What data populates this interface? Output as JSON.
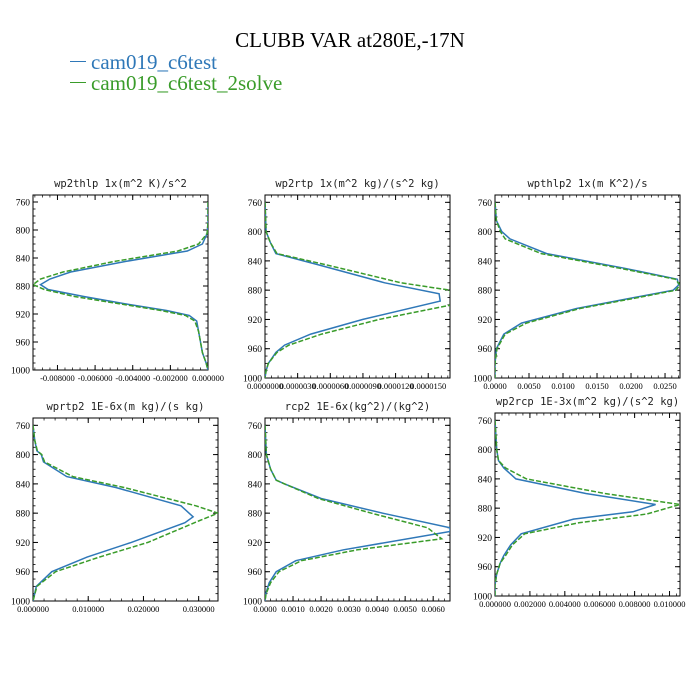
{
  "title": "CLUBB VAR at280E,-17N",
  "legend": [
    {
      "label": "cam019_c6test",
      "color": "#2f78b8"
    },
    {
      "label": "cam019_c6test_2solve",
      "color": "#3a9c2a"
    }
  ],
  "chart_data": [
    {
      "type": "line",
      "title": "wp2thlp  1x(m^2 K)/s^2",
      "ylim": [
        1000,
        750
      ],
      "yticks": [
        "760",
        "800",
        "840",
        "880",
        "920",
        "960",
        "1000"
      ],
      "xlim": [
        -0.0093,
        0.0
      ],
      "xticks": [
        {
          "v": -0.008,
          "label": "-0.008000"
        },
        {
          "v": -0.006,
          "label": "-0.006000"
        },
        {
          "v": -0.004,
          "label": "-0.004000"
        },
        {
          "v": -0.002,
          "label": "-0.002000"
        },
        {
          "v": 0.0,
          "label": "0.000000"
        }
      ],
      "series": [
        {
          "name": "cam019_c6test",
          "y": [
            760,
            790,
            805,
            820,
            830,
            845,
            860,
            870,
            878,
            885,
            895,
            905,
            915,
            922,
            930,
            945,
            960,
            975,
            990,
            1000
          ],
          "x": [
            0,
            0,
            -5e-05,
            -0.0003,
            -0.0011,
            -0.0044,
            -0.0073,
            -0.0084,
            -0.0089,
            -0.0085,
            -0.0066,
            -0.0045,
            -0.0022,
            -0.001,
            -0.0006,
            -0.0005,
            -0.0004,
            -0.0003,
            -0.0001,
            0
          ]
        },
        {
          "name": "cam019_c6test_2solve",
          "y": [
            760,
            790,
            805,
            820,
            830,
            845,
            860,
            870,
            878,
            885,
            895,
            905,
            915,
            922,
            930,
            945,
            960,
            975,
            990,
            1000
          ],
          "x": [
            0,
            0,
            -5e-05,
            -0.0005,
            -0.0016,
            -0.005,
            -0.0077,
            -0.0089,
            -0.0093,
            -0.0087,
            -0.0071,
            -0.0048,
            -0.0025,
            -0.0012,
            -0.0007,
            -0.0005,
            -0.0004,
            -0.0003,
            -0.0001,
            0
          ]
        }
      ]
    },
    {
      "type": "line",
      "title": "wp2rtp  1x(m^2 kg)/(s^2 kg)",
      "ylim": [
        1000,
        750
      ],
      "yticks": [
        "760",
        "800",
        "840",
        "880",
        "920",
        "960",
        "1000"
      ],
      "xlim": [
        0.0,
        1.7e-05
      ],
      "xticks": [
        {
          "v": 0.0,
          "label": "0.0000000"
        },
        {
          "v": 3e-06,
          "label": "0.0000030"
        },
        {
          "v": 6e-06,
          "label": "0.0000060"
        },
        {
          "v": 9e-06,
          "label": "0.0000090"
        },
        {
          "v": 1.2e-05,
          "label": "0.0000120"
        },
        {
          "v": 1.5e-05,
          "label": "0.0000150"
        }
      ],
      "series": [
        {
          "name": "cam019_c6test",
          "y": [
            760,
            800,
            815,
            830,
            845,
            870,
            885,
            895,
            920,
            940,
            955,
            965,
            980,
            990,
            1000
          ],
          "x": [
            0,
            1e-07,
            5e-07,
            1e-06,
            4.8e-06,
            1.1e-05,
            1.6e-05,
            1.61e-05,
            9e-06,
            4.2e-06,
            1.8e-06,
            1e-06,
            3e-07,
            1e-07,
            0
          ]
        },
        {
          "name": "cam019_c6test_2solve",
          "y": [
            760,
            800,
            815,
            830,
            845,
            870,
            880,
            900,
            920,
            940,
            955,
            965,
            980,
            990,
            1000
          ],
          "x": [
            0,
            1e-07,
            5e-07,
            1.1e-06,
            5.5e-06,
            1.25e-05,
            1.7e-05,
            1.72e-05,
            1.05e-05,
            5.2e-06,
            2.2e-06,
            1.1e-06,
            3e-07,
            1e-07,
            0
          ]
        }
      ]
    },
    {
      "type": "line",
      "title": "wpthlp2  1x(m K^2)/s",
      "ylim": [
        1000,
        750
      ],
      "yticks": [
        "760",
        "800",
        "840",
        "880",
        "920",
        "960",
        "1000"
      ],
      "xlim": [
        0.0,
        0.0272
      ],
      "xticks": [
        {
          "v": 0.0,
          "label": "0.0000"
        },
        {
          "v": 0.005,
          "label": "0.0050"
        },
        {
          "v": 0.01,
          "label": "0.0100"
        },
        {
          "v": 0.015,
          "label": "0.0150"
        },
        {
          "v": 0.02,
          "label": "0.0200"
        },
        {
          "v": 0.025,
          "label": "0.0250"
        }
      ],
      "series": [
        {
          "name": "cam019_c6test",
          "y": [
            760,
            785,
            800,
            810,
            830,
            850,
            865,
            873,
            880,
            890,
            905,
            925,
            940,
            960,
            980,
            1000
          ],
          "x": [
            0,
            0.0002,
            0.001,
            0.0022,
            0.0076,
            0.019,
            0.0268,
            0.027,
            0.0262,
            0.0205,
            0.012,
            0.0039,
            0.0013,
            0.0002,
            0,
            0
          ]
        },
        {
          "name": "cam019_c6test_2solve",
          "y": [
            760,
            785,
            800,
            810,
            830,
            850,
            865,
            873,
            880,
            890,
            905,
            925,
            940,
            960,
            980,
            1000
          ],
          "x": [
            0,
            0.0002,
            0.0008,
            0.0015,
            0.0068,
            0.0183,
            0.0265,
            0.0272,
            0.0266,
            0.0211,
            0.0125,
            0.0046,
            0.0015,
            0.0003,
            0,
            0
          ]
        }
      ]
    },
    {
      "type": "line",
      "title": "wprtp2  1E-6x(m kg)/(s kg)",
      "ylim": [
        1000,
        750
      ],
      "yticks": [
        "760",
        "800",
        "840",
        "880",
        "920",
        "960",
        "1000"
      ],
      "xlim": [
        0.0,
        0.0335
      ],
      "xticks": [
        {
          "v": 0.0,
          "label": "0.000000"
        },
        {
          "v": 0.01,
          "label": "0.010000"
        },
        {
          "v": 0.02,
          "label": "0.020000"
        },
        {
          "v": 0.03,
          "label": "0.030000"
        }
      ],
      "series": [
        {
          "name": "cam019_c6test",
          "y": [
            760,
            780,
            795,
            800,
            810,
            830,
            845,
            870,
            885,
            893,
            920,
            940,
            960,
            980,
            1000
          ],
          "x": [
            0,
            0.0003,
            0.0007,
            0.0015,
            0.0019,
            0.0061,
            0.015,
            0.0268,
            0.029,
            0.0275,
            0.0178,
            0.0098,
            0.0034,
            0.0006,
            0
          ]
        },
        {
          "name": "cam019_c6test_2solve",
          "y": [
            760,
            780,
            795,
            800,
            810,
            830,
            845,
            870,
            880,
            890,
            920,
            940,
            960,
            980,
            1000
          ],
          "x": [
            0,
            0.0003,
            0.0008,
            0.0016,
            0.0021,
            0.0072,
            0.0165,
            0.0295,
            0.0335,
            0.0302,
            0.0208,
            0.012,
            0.0041,
            0.0007,
            0
          ]
        }
      ]
    },
    {
      "type": "line",
      "title": "rcp2  1E-6x(kg^2)/(kg^2)",
      "ylim": [
        1000,
        750
      ],
      "yticks": [
        "760",
        "800",
        "840",
        "880",
        "920",
        "960",
        "1000"
      ],
      "xlim": [
        0.0,
        0.0066
      ],
      "xticks": [
        {
          "v": 0.0,
          "label": "0.0000"
        },
        {
          "v": 0.001,
          "label": "0.0010"
        },
        {
          "v": 0.002,
          "label": "0.0020"
        },
        {
          "v": 0.003,
          "label": "0.0030"
        },
        {
          "v": 0.004,
          "label": "0.0040"
        },
        {
          "v": 0.005,
          "label": "0.0050"
        },
        {
          "v": 0.006,
          "label": "0.0060"
        }
      ],
      "series": [
        {
          "name": "cam019_c6test",
          "y": [
            760,
            800,
            820,
            835,
            840,
            860,
            880,
            900,
            905,
            930,
            945,
            960,
            975,
            990,
            1000
          ],
          "x": [
            0,
            5e-05,
            0.0002,
            0.0004,
            0.0007,
            0.002,
            0.0042,
            0.0066,
            0.0066,
            0.0028,
            0.0011,
            0.0004,
            0.00015,
            3e-05,
            0
          ]
        },
        {
          "name": "cam019_c6test_2solve",
          "y": [
            760,
            800,
            820,
            835,
            840,
            860,
            880,
            900,
            915,
            930,
            945,
            960,
            975,
            990,
            1000
          ],
          "x": [
            0,
            5e-05,
            0.0002,
            0.0004,
            0.0007,
            0.0019,
            0.0038,
            0.0058,
            0.0063,
            0.0033,
            0.0013,
            0.0005,
            0.0002,
            4e-05,
            0
          ]
        }
      ]
    },
    {
      "type": "line",
      "title": "wp2rcp  1E-3x(m^2 kg)/(s^2 kg)",
      "ylim": [
        1000,
        750
      ],
      "yticks": [
        "760",
        "800",
        "840",
        "880",
        "920",
        "960",
        "1000"
      ],
      "xlim": [
        0.0,
        0.0106
      ],
      "xticks": [
        {
          "v": 0.0,
          "label": "0.000000"
        },
        {
          "v": 0.002,
          "label": "0.002000"
        },
        {
          "v": 0.004,
          "label": "0.004000"
        },
        {
          "v": 0.006,
          "label": "0.006000"
        },
        {
          "v": 0.008,
          "label": "0.008000"
        },
        {
          "v": 0.01,
          "label": "0.010000"
        }
      ],
      "series": [
        {
          "name": "cam019_c6test",
          "y": [
            760,
            800,
            815,
            825,
            840,
            860,
            875,
            885,
            895,
            915,
            930,
            945,
            955,
            970,
            985,
            1000
          ],
          "x": [
            0,
            0.0001,
            0.0002,
            0.0005,
            0.0012,
            0.0052,
            0.0092,
            0.0079,
            0.0045,
            0.0015,
            0.0009,
            0.0005,
            0.0003,
            0.0001,
            0,
            0
          ]
        },
        {
          "name": "cam019_c6test_2solve",
          "y": [
            760,
            800,
            815,
            825,
            840,
            860,
            875,
            888,
            900,
            915,
            930,
            945,
            955,
            970,
            985,
            1000
          ],
          "x": [
            0,
            0.0001,
            0.0002,
            0.0006,
            0.0018,
            0.0063,
            0.0106,
            0.0087,
            0.0048,
            0.0017,
            0.001,
            0.0006,
            0.0003,
            0.0001,
            0,
            0
          ]
        }
      ]
    }
  ]
}
